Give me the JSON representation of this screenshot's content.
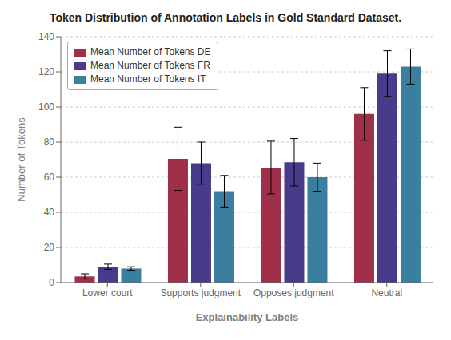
{
  "chart_data": {
    "type": "bar",
    "title": "Token Distribution of Annotation Labels in Gold Standard Dataset.",
    "xlabel": "Explainability Labels",
    "ylabel": "Number of Tokens",
    "categories": [
      "Lower court",
      "Supports judgment",
      "Opposes judgment",
      "Neutral"
    ],
    "series": [
      {
        "name": "Mean Number of Tokens DE",
        "color": "#a0304a",
        "values": [
          3.5,
          70.5,
          65.5,
          96.0
        ],
        "errors": [
          1.5,
          18.0,
          15.0,
          15.0
        ]
      },
      {
        "name": "Mean Number of Tokens FR",
        "color": "#4a3a8a",
        "values": [
          9.0,
          68.0,
          68.5,
          119.0
        ],
        "errors": [
          1.5,
          12.0,
          13.5,
          13.0
        ]
      },
      {
        "name": "Mean Number of Tokens IT",
        "color": "#3a7fa0",
        "values": [
          8.0,
          52.0,
          60.0,
          123.0
        ],
        "errors": [
          1.0,
          9.0,
          8.0,
          10.0
        ]
      }
    ],
    "ylim": [
      0,
      140
    ],
    "yticks": [
      0,
      20,
      40,
      60,
      80,
      100,
      120,
      140
    ],
    "grid": true,
    "legend": "upper left"
  }
}
